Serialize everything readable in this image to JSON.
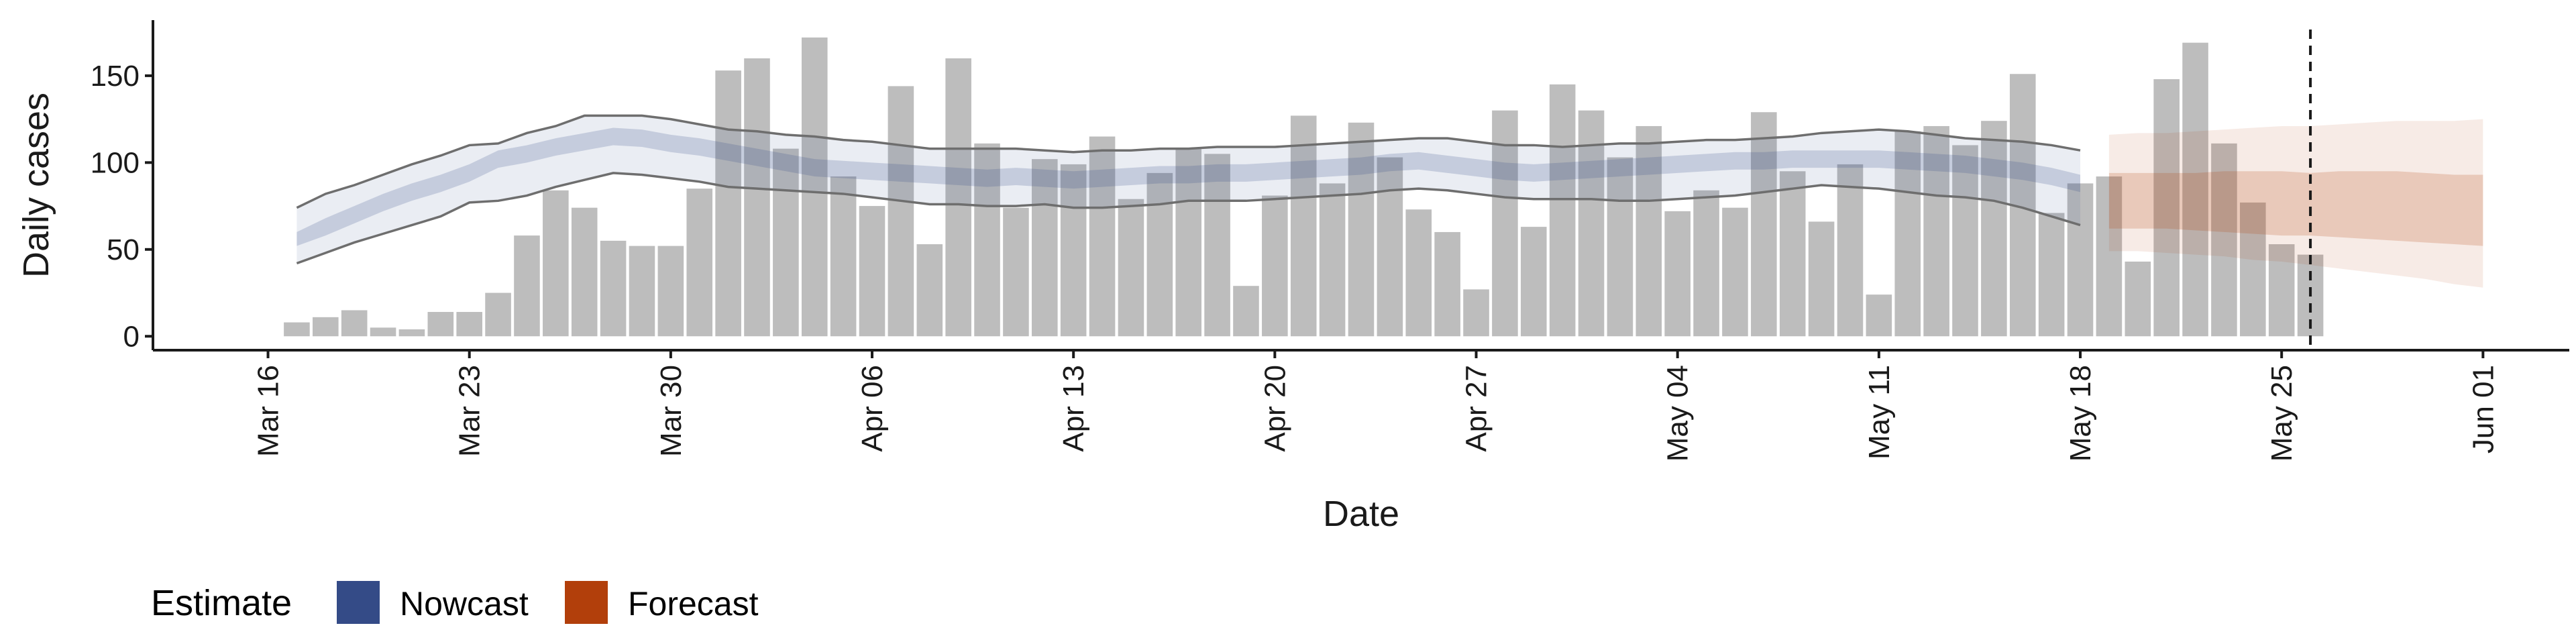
{
  "chart_data": {
    "type": "bar",
    "xlabel": "Date",
    "ylabel": "Daily cases",
    "x_range": [
      "2020-03-12",
      "2020-06-04"
    ],
    "ylim": [
      -8,
      182
    ],
    "y_ticks": [
      0,
      50,
      100,
      150
    ],
    "x_ticks": [
      {
        "date": "2020-03-16",
        "label": "Mar 16"
      },
      {
        "date": "2020-03-23",
        "label": "Mar 23"
      },
      {
        "date": "2020-03-30",
        "label": "Mar 30"
      },
      {
        "date": "2020-04-06",
        "label": "Apr 06"
      },
      {
        "date": "2020-04-13",
        "label": "Apr 13"
      },
      {
        "date": "2020-04-20",
        "label": "Apr 20"
      },
      {
        "date": "2020-04-27",
        "label": "Apr 27"
      },
      {
        "date": "2020-05-04",
        "label": "May 04"
      },
      {
        "date": "2020-05-11",
        "label": "May 11"
      },
      {
        "date": "2020-05-18",
        "label": "May 18"
      },
      {
        "date": "2020-05-25",
        "label": "May 25"
      },
      {
        "date": "2020-06-01",
        "label": "Jun 01"
      }
    ],
    "grid": false,
    "reference_line": {
      "date": "2020-05-26",
      "style": "dashed"
    },
    "legend": {
      "title": "Estimate",
      "position": "bottom-left",
      "entries": [
        {
          "label": "Nowcast",
          "color": "#344b87"
        },
        {
          "label": "Forecast",
          "color": "#b23f0b"
        }
      ]
    },
    "colors": {
      "bars": "#bdbdbd",
      "nowcast": "#344b87",
      "forecast": "#b23f0b",
      "outer_lines": "#6e6e6e"
    },
    "bars": {
      "start_date": "2020-03-17",
      "values": [
        8,
        11,
        15,
        5,
        4,
        14,
        14,
        25,
        58,
        84,
        74,
        55,
        52,
        52,
        85,
        153,
        160,
        108,
        172,
        92,
        75,
        144,
        53,
        160,
        111,
        74,
        102,
        99,
        115,
        79,
        94,
        108,
        105,
        29,
        81,
        127,
        88,
        123,
        103,
        73,
        60,
        27,
        130,
        63,
        145,
        130,
        103,
        121,
        72,
        84,
        74,
        129,
        95,
        66,
        99,
        24,
        118,
        121,
        110,
        124,
        151,
        71,
        88,
        92,
        43,
        148,
        169,
        111,
        77,
        53,
        47
      ]
    },
    "nowcast": {
      "start_date": "2020-03-17",
      "median": [
        56,
        63,
        70,
        77,
        83,
        88,
        94,
        102,
        105,
        109,
        112,
        115,
        114,
        111,
        109,
        106,
        103,
        100,
        97,
        96,
        95,
        94,
        93,
        92,
        91,
        92,
        91,
        90,
        91,
        92,
        93,
        93,
        94,
        94,
        95,
        96,
        97,
        98,
        100,
        101,
        99,
        97,
        95,
        94,
        95,
        96,
        97,
        98,
        99,
        100,
        101,
        101,
        102,
        102,
        102,
        102,
        101,
        100,
        99,
        97,
        95,
        92,
        88
      ],
      "inner_lower": [
        52,
        58,
        65,
        72,
        78,
        83,
        89,
        97,
        100,
        104,
        107,
        110,
        109,
        106,
        104,
        101,
        98,
        95,
        92,
        91,
        90,
        89,
        88,
        87,
        86,
        87,
        86,
        85,
        86,
        87,
        88,
        88,
        89,
        89,
        90,
        91,
        92,
        93,
        95,
        96,
        94,
        92,
        90,
        89,
        90,
        91,
        92,
        93,
        94,
        95,
        96,
        96,
        97,
        97,
        97,
        97,
        96,
        95,
        94,
        92,
        90,
        87,
        83
      ],
      "inner_upper": [
        60,
        68,
        75,
        82,
        88,
        93,
        99,
        107,
        110,
        114,
        117,
        120,
        119,
        116,
        114,
        111,
        108,
        105,
        102,
        101,
        100,
        99,
        98,
        97,
        96,
        97,
        96,
        95,
        96,
        97,
        98,
        98,
        99,
        99,
        100,
        101,
        102,
        103,
        105,
        106,
        104,
        102,
        100,
        99,
        100,
        101,
        102,
        103,
        104,
        105,
        106,
        106,
        107,
        107,
        107,
        107,
        106,
        105,
        104,
        102,
        100,
        97,
        93
      ],
      "outer_lower": [
        42,
        48,
        54,
        59,
        64,
        69,
        77,
        78,
        81,
        86,
        90,
        94,
        93,
        91,
        89,
        86,
        85,
        84,
        83,
        82,
        80,
        78,
        76,
        76,
        75,
        75,
        76,
        74,
        74,
        75,
        76,
        78,
        78,
        78,
        79,
        80,
        81,
        82,
        84,
        85,
        84,
        82,
        80,
        79,
        79,
        79,
        78,
        78,
        79,
        80,
        81,
        83,
        85,
        87,
        86,
        85,
        83,
        81,
        80,
        78,
        74,
        69,
        64
      ],
      "outer_upper": [
        74,
        82,
        87,
        93,
        99,
        104,
        110,
        111,
        117,
        121,
        127,
        127,
        127,
        125,
        122,
        119,
        118,
        116,
        115,
        113,
        112,
        110,
        108,
        108,
        108,
        108,
        107,
        106,
        107,
        107,
        108,
        108,
        109,
        109,
        109,
        110,
        111,
        112,
        113,
        114,
        114,
        112,
        110,
        110,
        109,
        110,
        111,
        111,
        112,
        113,
        113,
        114,
        115,
        117,
        118,
        119,
        118,
        116,
        114,
        113,
        112,
        110,
        107
      ]
    },
    "forecast": {
      "start_date": "2020-05-19",
      "median": [
        78,
        79,
        80,
        79,
        78,
        77,
        77,
        76,
        76,
        77,
        77,
        76,
        76,
        75
      ],
      "inner_lower": [
        62,
        62,
        62,
        61,
        60,
        59,
        58,
        58,
        57,
        56,
        55,
        54,
        53,
        52
      ],
      "inner_upper": [
        94,
        94,
        94,
        94,
        95,
        95,
        95,
        94,
        95,
        95,
        95,
        94,
        93,
        93
      ],
      "outer_lower": [
        49,
        49,
        48,
        47,
        46,
        44,
        43,
        41,
        39,
        37,
        35,
        33,
        30,
        28
      ],
      "outer_upper": [
        116,
        117,
        117,
        118,
        119,
        120,
        121,
        121,
        122,
        123,
        124,
        124,
        124,
        125
      ]
    }
  }
}
